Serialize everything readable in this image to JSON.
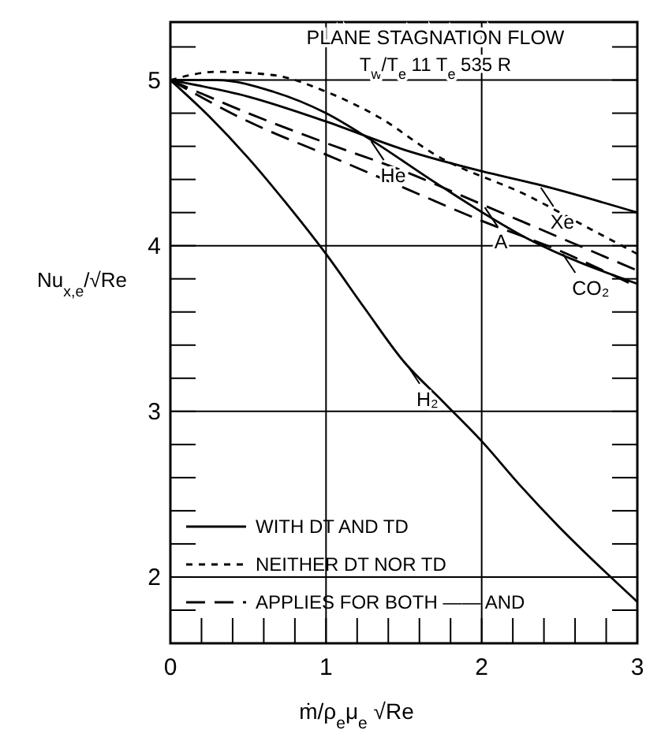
{
  "chart_data": {
    "type": "line",
    "title": "PLANE STAGNATION FLOW",
    "subtitle": "T$_{w}$/T$_{e}$ 11  T$_{e}$ 535 R",
    "xlabel": "ṁ/ρ$_{e}$μ$_{e}$ √Re",
    "ylabel": "Nu$_{x,e}$/√Re",
    "xlim": [
      0,
      3
    ],
    "ylim": [
      1.6,
      5.35
    ],
    "xticks": [
      0,
      {
        "value": 0.2,
        "label": null
      },
      {
        "value": 0.4,
        "label": null
      },
      {
        "value": 0.6,
        "label": null
      },
      {
        "value": 0.8,
        "label": null
      },
      1,
      {
        "value": 1.2,
        "label": null
      },
      {
        "value": 1.4,
        "label": null
      },
      {
        "value": 1.6,
        "label": null
      },
      {
        "value": 1.8,
        "label": null
      },
      2,
      {
        "value": 2.2,
        "label": null
      },
      {
        "value": 2.4,
        "label": null
      },
      {
        "value": 2.6,
        "label": null
      },
      {
        "value": 2.8,
        "label": null
      },
      3
    ],
    "yticks": [
      {
        "value": 1.8,
        "label": null
      },
      2,
      {
        "value": 2.2,
        "label": null
      },
      {
        "value": 2.4,
        "label": null
      },
      {
        "value": 2.6,
        "label": null
      },
      {
        "value": 2.8,
        "label": null
      },
      3,
      {
        "value": 3.2,
        "label": null
      },
      {
        "value": 3.4,
        "label": null
      },
      {
        "value": 3.6,
        "label": null
      },
      {
        "value": 3.8,
        "label": null
      },
      4,
      {
        "value": 4.2,
        "label": null
      },
      {
        "value": 4.4,
        "label": null
      },
      {
        "value": 4.6,
        "label": null
      },
      {
        "value": 4.8,
        "label": null
      },
      5,
      {
        "value": 5.2,
        "label": null
      }
    ],
    "grid": true,
    "legend": "bottom left",
    "series": [
      {
        "name": "WITH DT AND TD",
        "color": "#000000",
        "line_style": "solid",
        "x": [
          0,
          0.25,
          0.5,
          0.75,
          1,
          1.25,
          1.5,
          1.75,
          2,
          2.25,
          2.5,
          2.75,
          3
        ],
        "values": [
          5,
          4.78,
          4.53,
          4.25,
          3.95,
          3.62,
          3.3,
          3.06,
          2.82,
          2.55,
          2.3,
          2.07,
          1.85
        ]
      },
      {
        "color": "#000000",
        "line_style": "solid",
        "x": [
          0,
          0.3,
          0.66,
          1,
          1.27,
          1.72,
          2.3,
          3
        ],
        "values": [
          5,
          5,
          4.93,
          4.8,
          4.65,
          4.37,
          4.04,
          3.77
        ]
      },
      {
        "color": "#000000",
        "line_style": "solid",
        "x": [
          0,
          0.5,
          1,
          1.5,
          2,
          2.36,
          3
        ],
        "values": [
          5,
          4.9,
          4.75,
          4.58,
          4.45,
          4.37,
          4.2
        ]
      },
      {
        "name": "NEITHER DT NOR TD",
        "color": "#000000",
        "line_style": "dotted",
        "x": [
          0,
          0.3,
          0.66,
          1,
          1.35,
          1.7,
          2.3,
          2.7,
          3
        ],
        "values": [
          5,
          5.05,
          5.03,
          4.93,
          4.77,
          4.55,
          4.3,
          4.1,
          3.95
        ]
      },
      {
        "name": "APPLIES FOR BOTH —— AND",
        "color": "#000000",
        "line_style": "dashed",
        "x": [
          0,
          0.5,
          1,
          1.5,
          2,
          2.5,
          3
        ],
        "values": [
          5,
          4.8,
          4.62,
          4.45,
          4.25,
          4.05,
          3.85
        ]
      },
      {
        "color": "#000000",
        "line_style": "dashed",
        "x": [
          0,
          0.5,
          1,
          1.5,
          2,
          2.5,
          3
        ],
        "values": [
          5,
          4.75,
          4.55,
          4.35,
          4.15,
          3.97,
          3.75
        ]
      }
    ],
    "annotations": [
      {
        "text": "He",
        "x": 1.27,
        "y": 4.65
      },
      {
        "text": "Xe",
        "x": 2.36,
        "y": 4.37
      },
      {
        "text": "A",
        "x": 2,
        "y": 4.25
      },
      {
        "text": "CO₂",
        "x": 2.5,
        "y": 3.97
      },
      {
        "text": "H₂",
        "x": 1.5,
        "y": 3.3
      }
    ]
  }
}
